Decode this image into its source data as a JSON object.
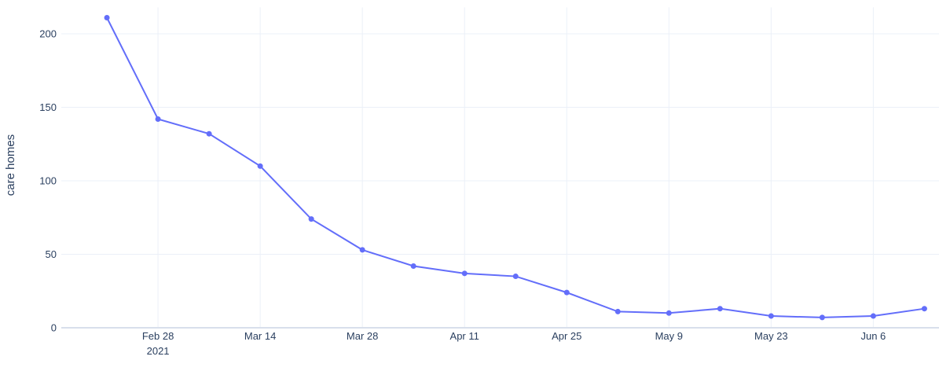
{
  "chart_data": {
    "type": "line",
    "y_label": "care homes",
    "x": [
      "2021-02-21",
      "2021-02-28",
      "2021-03-07",
      "2021-03-14",
      "2021-03-21",
      "2021-03-28",
      "2021-04-04",
      "2021-04-11",
      "2021-04-18",
      "2021-04-25",
      "2021-05-02",
      "2021-05-09",
      "2021-05-16",
      "2021-05-23",
      "2021-05-30",
      "2021-06-06",
      "2021-06-13"
    ],
    "series": [
      {
        "name": "care homes",
        "color": "#636efa",
        "values": [
          211,
          142,
          132,
          110,
          74,
          53,
          42,
          37,
          35,
          24,
          11,
          10,
          13,
          8,
          7,
          8,
          13
        ]
      }
    ],
    "xlim": [
      "2021-02-14T18:00:00",
      "2021-06-15T00:00:00"
    ],
    "xticks": [
      {
        "value": "2021-02-28",
        "label": "Feb 28"
      },
      {
        "value": "2021-03-14",
        "label": "Mar 14"
      },
      {
        "value": "2021-03-28",
        "label": "Mar 28"
      },
      {
        "value": "2021-04-11",
        "label": "Apr 11"
      },
      {
        "value": "2021-04-25",
        "label": "Apr 25"
      },
      {
        "value": "2021-05-09",
        "label": "May 9"
      },
      {
        "value": "2021-05-23",
        "label": "May 23"
      },
      {
        "value": "2021-06-06",
        "label": "Jun 6"
      }
    ],
    "x_year_label": "2021",
    "ylim": [
      0,
      218
    ],
    "yticks": [
      0,
      50,
      100,
      150,
      200
    ],
    "grid": true
  }
}
